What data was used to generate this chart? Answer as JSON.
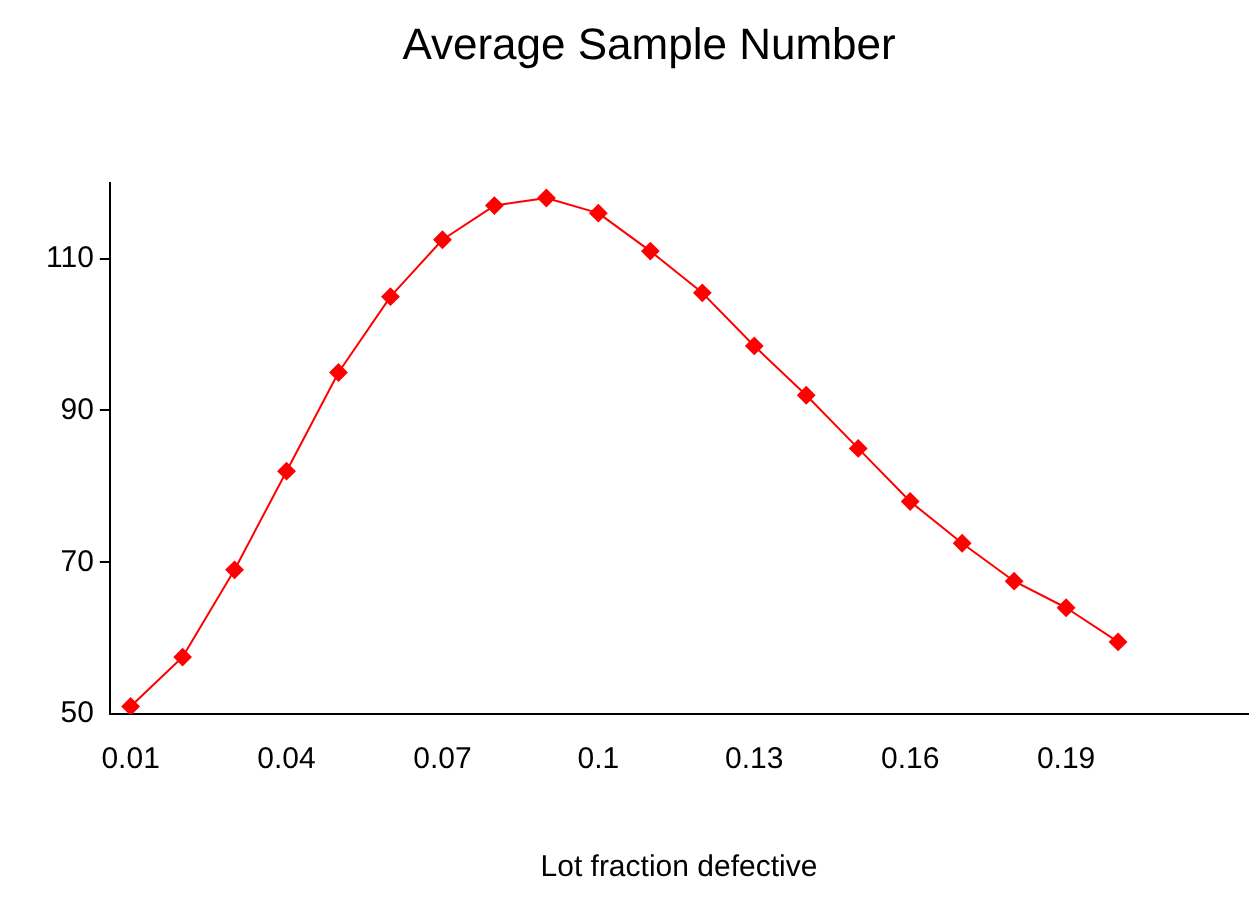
{
  "chart_data": {
    "type": "line",
    "title": "Average Sample Number",
    "xlabel": "Lot fraction defective",
    "x": [
      0.01,
      0.02,
      0.03,
      0.04,
      0.05,
      0.06,
      0.07,
      0.08,
      0.09,
      0.1,
      0.11,
      0.12,
      0.13,
      0.14,
      0.15,
      0.16,
      0.17,
      0.18,
      0.19,
      0.2
    ],
    "series": [
      {
        "color": "#ff0000",
        "values": [
          51,
          57.5,
          69,
          82,
          95,
          105,
          112.5,
          117,
          118,
          116,
          111,
          105.5,
          98.5,
          92,
          85,
          78,
          72.5,
          67.5,
          64,
          59.5
        ]
      }
    ],
    "xlim": [
      0.006,
      0.225
    ],
    "xticks": [
      0.01,
      0.04,
      0.07,
      0.1,
      0.13,
      0.16,
      0.19
    ],
    "ylim": [
      50,
      120
    ],
    "yticks": [
      50,
      70,
      90,
      110
    ],
    "grid": false,
    "legend": false,
    "marker": "diamond",
    "line_style": "solid"
  }
}
